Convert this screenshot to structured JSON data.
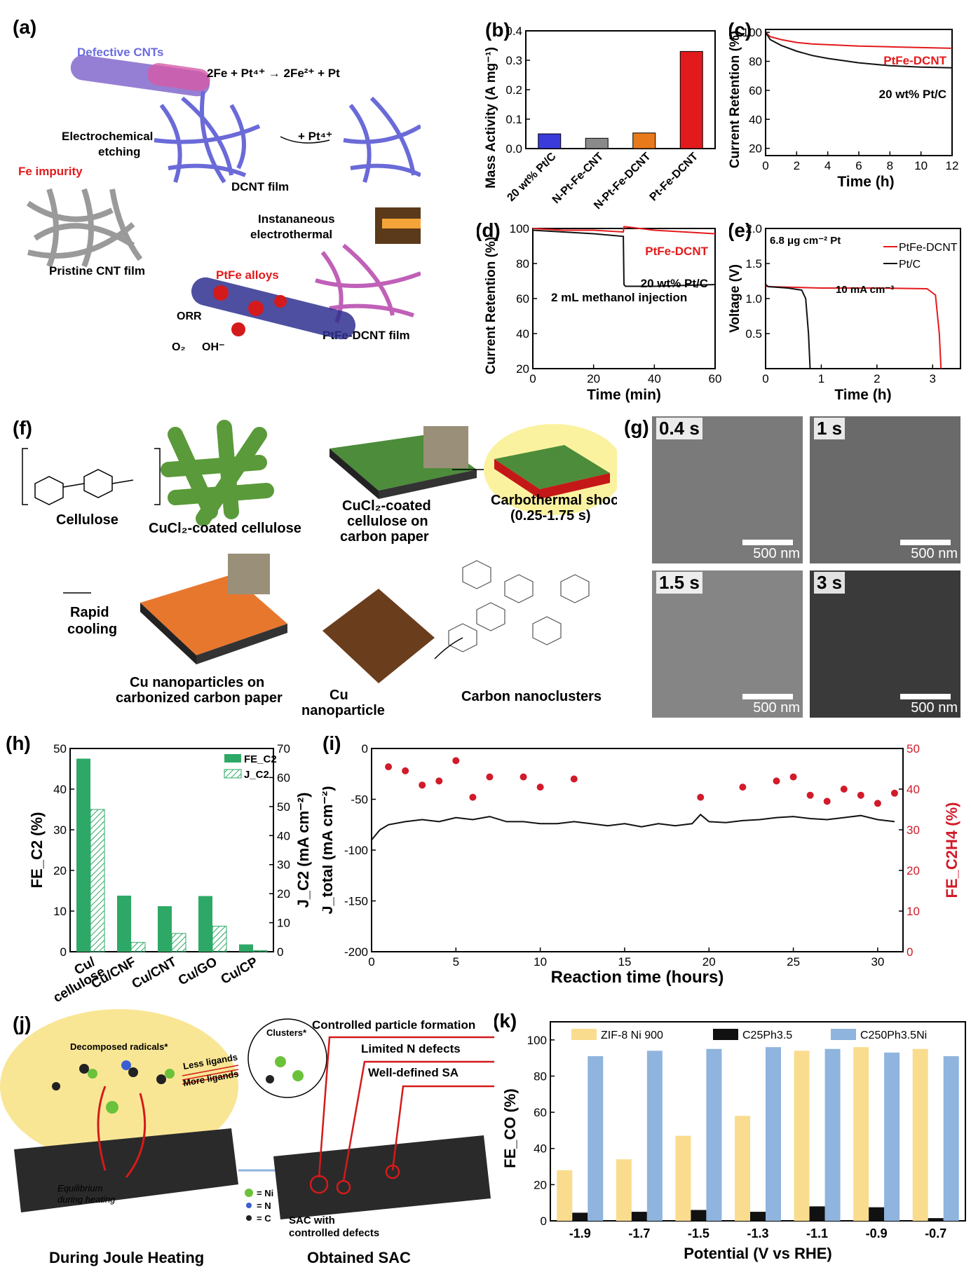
{
  "panels": {
    "a": {
      "label": "(a)",
      "defective_cnts": "Defective CNTs",
      "reaction": "2Fe + Pt⁴⁺ → 2Fe²⁺ + Pt",
      "electrochemical": "Electrochemical",
      "etching": "etching",
      "fe_impurity": "Fe impurity",
      "dcnt_film": "DCNT film",
      "pt_plus": "+ Pt⁴⁺",
      "instantaneous": "Instananeous",
      "electrothermal": "electrothermal",
      "pristine": "Pristine CNT film",
      "ptfe_alloys": "PtFe alloys",
      "orr": "ORR",
      "o2": "O₂",
      "oh": "OH⁻",
      "ptfe_dcnt_film": "PtFe-DCNT film"
    },
    "f": {
      "label": "(f)",
      "cellulose": "Cellulose",
      "cucl2_cellulose": "CuCl₂-coated cellulose",
      "cucl2_cp1": "CuCl₂-coated",
      "cucl2_cp2": "cellulose on",
      "cucl2_cp3": "carbon paper",
      "shock1": "Carbothermal shock",
      "shock2": "(0.25-1.75 s)",
      "rapid1": "Rapid",
      "rapid2": "cooling",
      "cu_np1": "Cu nanoparticles on",
      "cu_np2": "carbonized carbon paper",
      "cu1": "Cu",
      "cu2": "nanoparticle",
      "carbon_clusters": "Carbon nanoclusters"
    },
    "g": {
      "label": "(g)",
      "images": [
        {
          "time": "0.4 s",
          "scale": "500 nm"
        },
        {
          "time": "1 s",
          "scale": "500 nm"
        },
        {
          "time": "1.5 s",
          "scale": "500 nm"
        },
        {
          "time": "3 s",
          "scale": "500 nm"
        }
      ]
    },
    "j": {
      "label": "(j)",
      "decomposed": "Decomposed radicals*",
      "less": "Less ligands",
      "more": "More ligands",
      "clusters": "Clusters*",
      "controlled": "Controlled particle formation",
      "limited": "Limited N defects",
      "welldefined": "Well-defined SA",
      "equilibrium1": "Equilibrium",
      "equilibrium2": "during heating",
      "ni": "= Ni",
      "n": "= N",
      "c": "= C",
      "sac1": "SAC with",
      "sac2": "controlled defects",
      "during": "During Joule Heating",
      "obtained": "Obtained SAC"
    }
  },
  "colors": {
    "red": "#e31a1c",
    "green": "#2ea866",
    "yellow": "#f9dc8e",
    "blue": "#8fb4dd",
    "black": "#111111"
  },
  "chart_data": [
    {
      "id": "b",
      "label": "(b)",
      "type": "bar",
      "ylabel": "Mass Activity (A mg⁻¹)",
      "ylim": [
        0,
        0.4
      ],
      "yticks": [
        "0.0",
        "0.1",
        "0.2",
        "0.3",
        "0.4"
      ],
      "categories": [
        "20 wt% Pt/C",
        "N-Pt-Fe-CNT",
        "N-Pt-Fe-DCNT",
        "Pt-Fe-DCNT"
      ],
      "values": [
        0.05,
        0.035,
        0.053,
        0.33
      ],
      "bar_colors": [
        "#3b3bdb",
        "#8a8a8a",
        "#e87a1c",
        "#e31a1c"
      ]
    },
    {
      "id": "c",
      "label": "(c)",
      "type": "line",
      "xlabel": "Time (h)",
      "ylabel": "Current Retention (%)",
      "xlim": [
        0,
        12
      ],
      "ylim": [
        15,
        102
      ],
      "xticks": [
        "0",
        "2",
        "4",
        "6",
        "8",
        "10",
        "12"
      ],
      "yticks": [
        "20",
        "40",
        "60",
        "80",
        "100"
      ],
      "series": [
        {
          "name": "PtFe-DCNT",
          "color": "#e31a1c",
          "x": [
            0,
            0.3,
            1,
            2,
            3,
            4,
            6,
            8,
            10,
            12
          ],
          "y": [
            100,
            97,
            95,
            93,
            92,
            91.5,
            90.5,
            90,
            89.5,
            89
          ]
        },
        {
          "name": "20 wt% Pt/C",
          "color": "#111111",
          "x": [
            0,
            0.3,
            1,
            2,
            3,
            4,
            6,
            8,
            10,
            12
          ],
          "y": [
            100,
            95,
            91,
            87,
            84,
            82,
            79,
            77,
            76,
            75.5
          ]
        }
      ]
    },
    {
      "id": "d",
      "label": "(d)",
      "type": "line",
      "xlabel": "Time (min)",
      "ylabel": "Current Retention (%)",
      "xlim": [
        0,
        60
      ],
      "ylim": [
        20,
        100
      ],
      "xticks": [
        "0",
        "20",
        "40",
        "60"
      ],
      "yticks": [
        "20",
        "40",
        "60",
        "80",
        "100"
      ],
      "annotation": "2 mL methanol injection",
      "series": [
        {
          "name": "PtFe-DCNT",
          "color": "#e31a1c",
          "x": [
            0,
            10,
            20,
            29.8,
            30,
            30.5,
            40,
            50,
            60
          ],
          "y": [
            100,
            99,
            99,
            98,
            101,
            101,
            99,
            98,
            97
          ]
        },
        {
          "name": "20 wt% Pt/C",
          "color": "#111111",
          "x": [
            0,
            10,
            20,
            29.8,
            30,
            30.5,
            40,
            50,
            60
          ],
          "y": [
            99,
            98,
            97,
            95.5,
            68,
            67,
            67,
            67.5,
            68
          ]
        }
      ]
    },
    {
      "id": "e",
      "label": "(e)",
      "type": "line",
      "xlabel": "Time (h)",
      "ylabel": "Voltage (V)",
      "xlim": [
        0,
        3.5
      ],
      "ylim": [
        0,
        2.0
      ],
      "xticks": [
        "0",
        "1",
        "2",
        "3"
      ],
      "yticks": [
        "0.5",
        "1.0",
        "1.5",
        "2.0"
      ],
      "annotations": [
        "6.8 μg cm⁻² Pt",
        "10 mA cm⁻³"
      ],
      "series": [
        {
          "name": "PtFe-DCNT",
          "color": "#e31a1c",
          "x": [
            0,
            0.05,
            1,
            2,
            2.9,
            3.05,
            3.12,
            3.15
          ],
          "y": [
            1.18,
            1.17,
            1.15,
            1.15,
            1.14,
            1.05,
            0.5,
            0.0
          ]
        },
        {
          "name": "Pt/C",
          "color": "#111111",
          "x": [
            0,
            0.05,
            0.4,
            0.65,
            0.72,
            0.77,
            0.8
          ],
          "y": [
            1.2,
            1.17,
            1.15,
            1.12,
            1.0,
            0.5,
            0.0
          ]
        }
      ]
    },
    {
      "id": "h",
      "label": "(h)",
      "type": "bar",
      "ylabel": "FE_C2 (%)",
      "y2label": "J_C2 (mA cm⁻²)",
      "ylim": [
        0,
        50
      ],
      "y2lim": [
        0,
        70
      ],
      "yticks": [
        "0",
        "10",
        "20",
        "30",
        "40",
        "50"
      ],
      "y2ticks": [
        "0",
        "10",
        "20",
        "30",
        "40",
        "50",
        "60",
        "70"
      ],
      "categories": [
        "Cu/\ncellulose",
        "Cu/CNF",
        "Cu/CNT",
        "Cu/GO",
        "Cu/CP"
      ],
      "series": [
        {
          "name": "FE_C2",
          "axis": "left",
          "values": [
            47.5,
            13.8,
            11.2,
            13.7,
            1.8
          ],
          "color": "#2ea866"
        },
        {
          "name": "J_C2",
          "axis": "right",
          "values": [
            49,
            3.2,
            6.3,
            8.8,
            0.4
          ],
          "color": "#2ea866",
          "hatched": true
        }
      ]
    },
    {
      "id": "i",
      "label": "(i)",
      "type": "line",
      "xlabel": "Reaction time (hours)",
      "ylabel": "J_total (mA cm⁻²)",
      "y2label": "FE_C2H4 (%)",
      "xlim": [
        0,
        31.5
      ],
      "ylim": [
        -200,
        0
      ],
      "y2lim": [
        0,
        50
      ],
      "xticks": [
        "0",
        "5",
        "10",
        "15",
        "20",
        "25",
        "30"
      ],
      "yticks": [
        "-200",
        "-150",
        "-100",
        "-50",
        "0"
      ],
      "y2ticks": [
        "0",
        "10",
        "20",
        "30",
        "40",
        "50"
      ],
      "series": [
        {
          "name": "J_total",
          "axis": "left",
          "color": "#111111",
          "x": [
            0,
            0.5,
            1,
            2,
            3,
            4,
            5,
            6,
            7,
            8,
            9,
            10,
            11,
            12,
            13,
            14,
            15,
            16,
            17,
            18,
            19,
            19.5,
            20,
            21,
            22,
            23,
            24,
            25,
            26,
            27,
            28,
            29,
            30,
            31
          ],
          "y": [
            -90,
            -80,
            -75,
            -72,
            -70,
            -72,
            -68,
            -70,
            -67,
            -72,
            -72,
            -74,
            -74,
            -72,
            -74,
            -76,
            -74,
            -77,
            -74,
            -76,
            -74,
            -65,
            -72,
            -73,
            -71,
            -70,
            -68,
            -67,
            -69,
            -70,
            -68,
            -66,
            -70,
            -72
          ]
        },
        {
          "name": "FE_C2H4",
          "axis": "right",
          "color": "#d11a2a",
          "mode": "markers",
          "x": [
            1,
            2,
            3,
            4,
            5,
            6,
            7,
            9,
            10,
            12,
            19.5,
            22,
            24,
            25,
            26,
            27,
            28,
            29,
            30,
            31
          ],
          "y": [
            45.5,
            44.5,
            41,
            42,
            47,
            38,
            43,
            43,
            40.5,
            42.5,
            38,
            40.5,
            42,
            43,
            38.5,
            37,
            40,
            38.5,
            36.5,
            39
          ]
        }
      ]
    },
    {
      "id": "k",
      "label": "(k)",
      "type": "bar",
      "xlabel": "Potential (V vs RHE)",
      "ylabel": "FE_CO (%)",
      "ylim": [
        0,
        110
      ],
      "yticks": [
        "0",
        "20",
        "40",
        "60",
        "80",
        "100"
      ],
      "categories": [
        "-1.9",
        "-1.7",
        "-1.5",
        "-1.3",
        "-1.1",
        "-0.9",
        "-0.7"
      ],
      "series": [
        {
          "name": "ZIF-8 Ni 900",
          "color": "#f9dc8e",
          "values": [
            28,
            34,
            47,
            58,
            94,
            96,
            95
          ]
        },
        {
          "name": "C25Ph3.5",
          "color": "#111111",
          "values": [
            4.5,
            5,
            6,
            5,
            8,
            7.5,
            1.5
          ]
        },
        {
          "name": "C250Ph3.5Ni",
          "color": "#8fb4dd",
          "values": [
            91,
            94,
            95,
            96,
            95,
            93,
            91
          ]
        }
      ]
    }
  ]
}
